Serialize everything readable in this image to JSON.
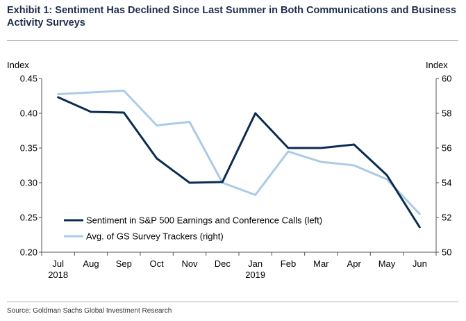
{
  "title": "Exhibit 1: Sentiment Has Declined Since Last Summer in Both Communications and Business Activity Surveys",
  "source": "Source: Goldman Sachs Global Investment Research",
  "chart_data": {
    "type": "line",
    "left_axis_title": "Index",
    "right_axis_title": "Index",
    "categories": [
      "Jul",
      "Aug",
      "Sep",
      "Oct",
      "Nov",
      "Dec",
      "Jan",
      "Feb",
      "Mar",
      "Apr",
      "May",
      "Jun"
    ],
    "category_years": [
      "2018",
      "",
      "",
      "",
      "",
      "",
      "2019",
      "",
      "",
      "",
      "",
      ""
    ],
    "left_ylim": [
      0.2,
      0.45
    ],
    "left_ticks": [
      "0.20",
      "0.25",
      "0.30",
      "0.35",
      "0.40",
      "0.45"
    ],
    "right_ylim": [
      50,
      60
    ],
    "right_ticks": [
      "50",
      "52",
      "54",
      "56",
      "58",
      "60"
    ],
    "grid": false,
    "legend_position": "bottom-left",
    "series": [
      {
        "name": "Sentiment in S&P 500 Earnings and Conference Calls (left)",
        "axis": "left",
        "color": "#0b2c52",
        "values": [
          0.423,
          0.402,
          0.401,
          0.335,
          0.3,
          0.301,
          0.4,
          0.35,
          0.35,
          0.355,
          0.311,
          0.236
        ]
      },
      {
        "name": "Avg. of GS Survey Trackers (right)",
        "axis": "right",
        "color": "#a9cbe8",
        "values": [
          59.1,
          59.2,
          59.3,
          57.3,
          57.5,
          54.0,
          53.3,
          55.8,
          55.2,
          55.0,
          54.2,
          52.2
        ]
      }
    ]
  }
}
